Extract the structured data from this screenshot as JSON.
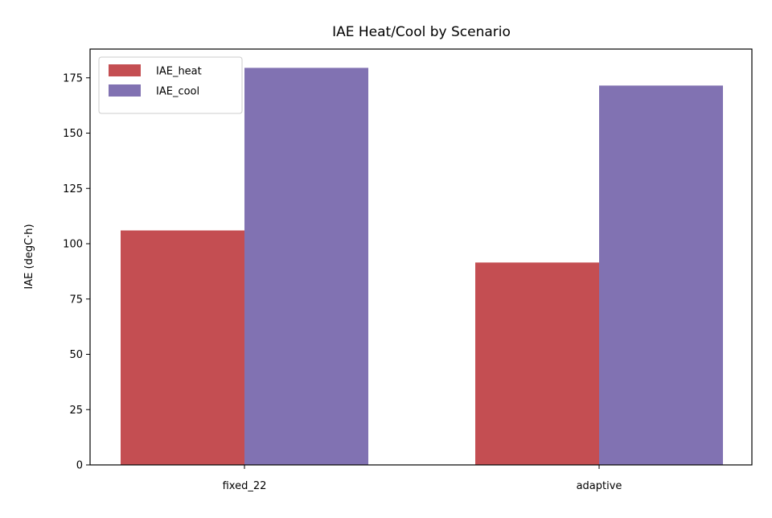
{
  "chart_data": {
    "type": "bar",
    "title": "IAE Heat/Cool by Scenario",
    "xlabel": "",
    "ylabel": "IAE (degC·h)",
    "categories": [
      "fixed_22",
      "adaptive"
    ],
    "series": [
      {
        "name": "IAE_heat",
        "values": [
          106,
          91.5
        ],
        "color": "#c44e52"
      },
      {
        "name": "IAE_cool",
        "values": [
          179.5,
          171.5
        ],
        "color": "#8172b2"
      }
    ],
    "ylim": [
      0,
      188
    ],
    "yticks": [
      0,
      25,
      50,
      75,
      100,
      125,
      150,
      175
    ],
    "ytick_labels": [
      "0",
      "25",
      "50",
      "75",
      "100",
      "125",
      "150",
      "175"
    ],
    "grid": false,
    "legend_position": "upper-left"
  }
}
